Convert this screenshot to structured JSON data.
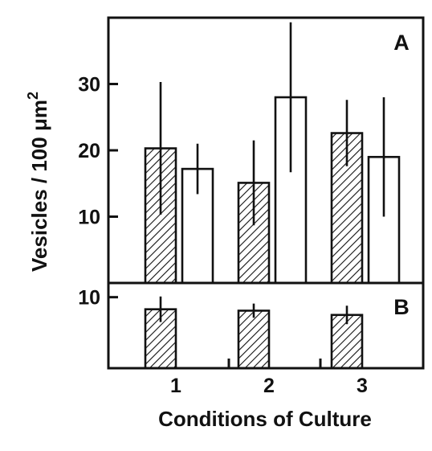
{
  "chart_data": [
    {
      "type": "bar",
      "panel_label": "A",
      "categories": [
        "1",
        "2",
        "3"
      ],
      "series": [
        {
          "pattern": "hatched",
          "values": [
            20.3,
            15.1,
            22.6
          ],
          "error": [
            10,
            6.4,
            5
          ]
        },
        {
          "pattern": "open",
          "values": [
            17.2,
            28.0,
            19.0
          ],
          "error": [
            3.8,
            11.3,
            9
          ]
        }
      ],
      "ylim": [
        0,
        40
      ],
      "yticks": [
        10,
        20,
        30
      ],
      "ylabel": "Vesicles / 100 μm²",
      "xlabel": "Conditions of Culture"
    },
    {
      "type": "bar",
      "panel_label": "B",
      "categories": [
        "1",
        "2",
        "3"
      ],
      "series": [
        {
          "pattern": "hatched",
          "values": [
            8.3,
            8.1,
            7.5
          ],
          "error": [
            1.8,
            1.0,
            1.3
          ]
        }
      ],
      "ylim": [
        0,
        12
      ],
      "yticks": [
        10
      ]
    }
  ],
  "labels": {
    "ylabel_main": "Vesicles / 100 μm",
    "ylabel_sup": "2",
    "xlabel": "Conditions of Culture"
  },
  "colors": {
    "ink": "#111111",
    "background": "#ffffff"
  }
}
